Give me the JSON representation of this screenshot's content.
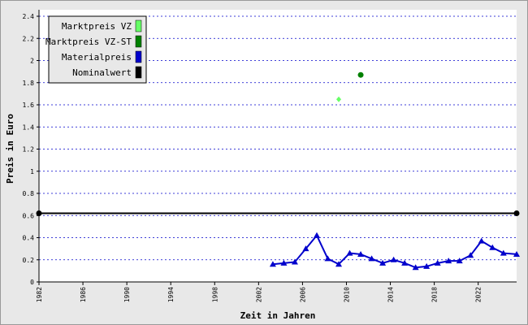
{
  "chart_data": {
    "type": "line",
    "x_label": "Zeit in Jahren",
    "y_label": "Preis in Euro",
    "xlim": [
      1982,
      2025.5
    ],
    "xticks": [
      1982,
      1986,
      1990,
      1994,
      1998,
      2002,
      2006,
      2010,
      2014,
      2018,
      2022
    ],
    "ylim": [
      0,
      2.4
    ],
    "yticks": [
      0,
      0.2,
      0.4,
      0.6,
      0.8,
      1,
      1.2,
      1.4,
      1.6,
      1.8,
      2,
      2.2,
      2.4
    ],
    "grid": true,
    "legend": "top-left",
    "series": [
      {
        "name": "Marktpreis VZ",
        "color": "#66ff66",
        "marker": "diamond",
        "x": [
          2009.3
        ],
        "values": [
          1.65
        ]
      },
      {
        "name": "Marktpreis VZ-ST",
        "color": "#008000",
        "marker": "circle",
        "x": [
          2011.3
        ],
        "values": [
          1.87
        ]
      },
      {
        "name": "Materialpreis",
        "color": "#0000cc",
        "marker": "triangle",
        "x": [
          2003.3,
          2004.3,
          2005.3,
          2006.3,
          2007.3,
          2008.3,
          2009.3,
          2010.3,
          2011.3,
          2012.3,
          2013.3,
          2014.3,
          2015.3,
          2016.3,
          2017.3,
          2018.3,
          2019.3,
          2020.3,
          2021.3,
          2022.3,
          2023.3,
          2024.3,
          2025.5
        ],
        "values": [
          0.16,
          0.17,
          0.18,
          0.3,
          0.42,
          0.21,
          0.16,
          0.26,
          0.25,
          0.21,
          0.17,
          0.2,
          0.17,
          0.13,
          0.14,
          0.17,
          0.19,
          0.19,
          0.24,
          0.37,
          0.31,
          0.26,
          0.25
        ]
      },
      {
        "name": "Nominalwert",
        "color": "#000000",
        "marker": "circle",
        "x": [
          1982,
          2025.5
        ],
        "values": [
          0.62,
          0.62
        ]
      }
    ]
  }
}
